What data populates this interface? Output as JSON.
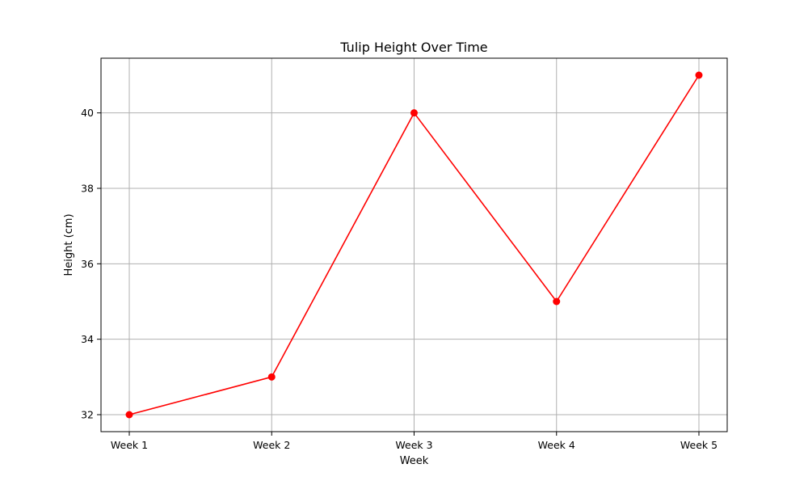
{
  "chart_data": {
    "type": "line",
    "title": "Tulip Height Over Time",
    "xlabel": "Week",
    "ylabel": "Height (cm)",
    "categories": [
      "Week 1",
      "Week 2",
      "Week 3",
      "Week 4",
      "Week 5"
    ],
    "series": [
      {
        "values": [
          32,
          33,
          40,
          35,
          41
        ],
        "color": "#ff0000",
        "marker": "circle"
      }
    ],
    "ylim": [
      31.55,
      41.45
    ],
    "yticks": [
      32,
      34,
      36,
      38,
      40
    ],
    "grid": true,
    "legend": "none"
  }
}
